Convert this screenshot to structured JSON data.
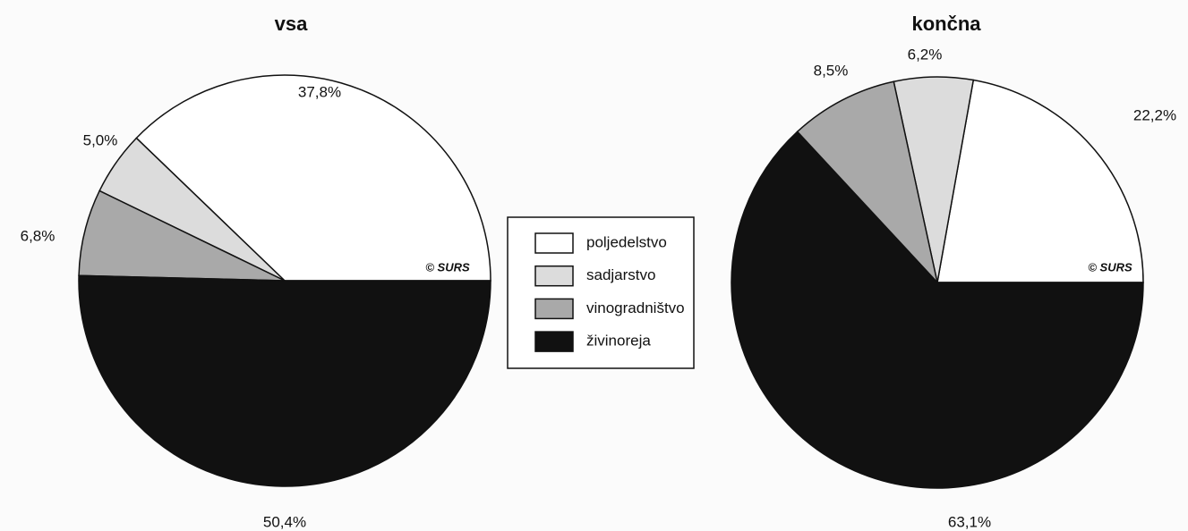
{
  "chart_data": [
    {
      "type": "pie",
      "title": "vsa",
      "annotation": "© SURS",
      "categories": [
        "poljedelstvo",
        "sadjarstvo",
        "vinogradništvo",
        "živinoreja"
      ],
      "values": [
        37.8,
        5.0,
        6.8,
        50.4
      ],
      "value_labels": [
        "37,8%",
        "5,0%",
        "6,8%",
        "50,4%"
      ],
      "colors": [
        "#ffffff",
        "#dcdcdc",
        "#a9a9a9",
        "#111111"
      ]
    },
    {
      "type": "pie",
      "title": "končna",
      "annotation": "© SURS",
      "categories": [
        "poljedelstvo",
        "sadjarstvo",
        "vinogradništvo",
        "živinoreja"
      ],
      "values": [
        22.2,
        6.2,
        8.5,
        63.1
      ],
      "value_labels": [
        "22,2%",
        "6,2%",
        "8,5%",
        "63,1%"
      ],
      "colors": [
        "#ffffff",
        "#dcdcdc",
        "#a9a9a9",
        "#111111"
      ]
    }
  ]
}
